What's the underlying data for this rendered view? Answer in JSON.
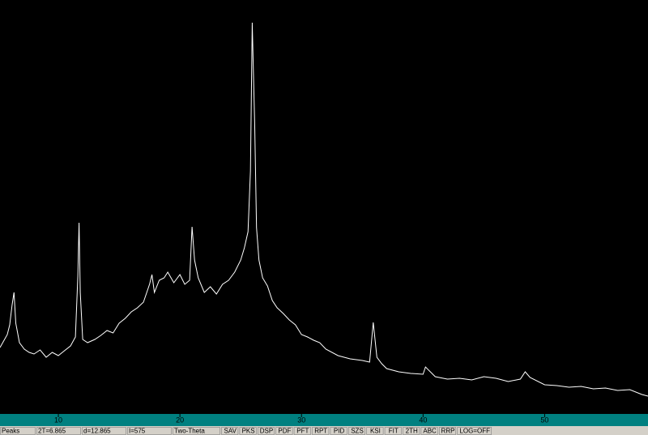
{
  "chart_data": {
    "type": "line",
    "x": [
      5.2,
      5.5,
      5.8,
      6.0,
      6.2,
      6.35,
      6.5,
      6.8,
      7.2,
      7.6,
      8.0,
      8.5,
      9.0,
      9.5,
      10.0,
      10.5,
      11.0,
      11.4,
      11.6,
      11.7,
      11.8,
      12.0,
      12.4,
      13.0,
      13.5,
      14.0,
      14.5,
      15.0,
      15.5,
      16.0,
      16.5,
      17.0,
      17.5,
      17.7,
      17.9,
      18.3,
      18.7,
      19.0,
      19.5,
      20.0,
      20.4,
      20.8,
      21.0,
      21.2,
      21.5,
      22.0,
      22.5,
      23.0,
      23.5,
      24.0,
      24.5,
      25.0,
      25.3,
      25.6,
      25.8,
      25.95,
      26.05,
      26.15,
      26.3,
      26.5,
      26.8,
      27.2,
      27.6,
      28.0,
      28.5,
      29.0,
      29.5,
      30.0,
      30.5,
      31.0,
      31.5,
      32.0,
      33.0,
      34.0,
      35.0,
      35.6,
      35.9,
      36.2,
      36.6,
      37.0,
      38.0,
      39.0,
      40.0,
      40.2,
      41.0,
      42.0,
      43.0,
      44.0,
      45.0,
      46.0,
      47.0,
      48.0,
      48.4,
      48.8,
      50.0,
      51.0,
      52.0,
      53.0,
      54.0,
      55.0,
      56.0,
      57.0,
      58.0,
      58.5
    ],
    "values": [
      82,
      90,
      98,
      110,
      135,
      150,
      112,
      88,
      80,
      76,
      74,
      79,
      70,
      76,
      72,
      78,
      84,
      95,
      170,
      236,
      150,
      92,
      88,
      92,
      97,
      103,
      100,
      112,
      118,
      126,
      131,
      138,
      160,
      172,
      150,
      165,
      168,
      175,
      162,
      172,
      160,
      165,
      231,
      190,
      168,
      150,
      157,
      148,
      160,
      165,
      175,
      190,
      205,
      225,
      300,
      483,
      420,
      360,
      230,
      190,
      168,
      158,
      140,
      131,
      124,
      116,
      110,
      98,
      95,
      91,
      88,
      80,
      72,
      68,
      66,
      64,
      113,
      70,
      62,
      56,
      52,
      50,
      49,
      58,
      46,
      43,
      44,
      42,
      46,
      44,
      40,
      43,
      52,
      45,
      36,
      35,
      33,
      34,
      31,
      32,
      29,
      30,
      24,
      22
    ],
    "color": "#ffffff",
    "background": "#000000",
    "axis_color": "#008080",
    "xlim": [
      5.2,
      58.5
    ],
    "ylim": [
      0,
      511
    ],
    "xticks": [
      10,
      20,
      30,
      40,
      50
    ]
  },
  "status_bar": {
    "mode": "Peaks",
    "readouts": [
      "2T=6.865",
      "d=12.865",
      "I=575"
    ],
    "axis_mode": "Two-Theta",
    "buttons": [
      "SAV",
      "PKS",
      "DSP",
      "PDF",
      "PFT",
      "RPT",
      "PID",
      "SZS",
      "KSI",
      "FIT",
      "2TH",
      "ABC",
      "RRP"
    ],
    "log": "LOG=OFF"
  }
}
